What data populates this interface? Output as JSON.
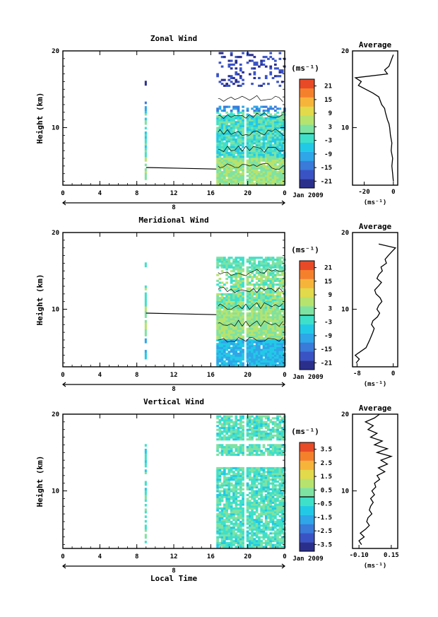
{
  "page": {
    "xlabel": "Local Time",
    "date_label": "Jan 2009",
    "day_label": "8"
  },
  "colormap": [
    "#2b2f8c",
    "#3a53c4",
    "#3a7ad9",
    "#2ea6e8",
    "#22c9e6",
    "#3fe0c9",
    "#7ee2a2",
    "#b6e36e",
    "#e2d94b",
    "#f7b43a",
    "#f5802c",
    "#e84a27"
  ],
  "chart_data": [
    {
      "type": "heatmap",
      "title": "Zonal Wind",
      "ylabel": "Height (km)",
      "yticks": [
        "20",
        "10"
      ],
      "xticks": [
        "0",
        "4",
        "8",
        "12",
        "16",
        "20",
        "0"
      ],
      "xlim": [
        0,
        24
      ],
      "ylim": [
        2.5,
        20
      ],
      "colorbar": {
        "unit": "(ms⁻¹)",
        "ticks": [
          "21",
          "15",
          "9",
          "3",
          "-3",
          "-9",
          "-15",
          "-21"
        ],
        "range": [
          -24,
          24
        ]
      },
      "profile": {
        "title": "Average",
        "xlabel": "(ms⁻¹)",
        "xticks": [
          "-20",
          "0"
        ],
        "xlim": [
          -28,
          3
        ],
        "heights": [
          3,
          4,
          5,
          6,
          7,
          8,
          9,
          10,
          10.5,
          11,
          12,
          12.5,
          13,
          14,
          14.5,
          15,
          15.5,
          16,
          16.5,
          17,
          17.5,
          18,
          18.5,
          19,
          19.5
        ],
        "values": [
          0,
          -0.5,
          -1,
          -0.5,
          -1.5,
          -1,
          -2,
          -2.5,
          -3,
          -4,
          -5.5,
          -6,
          -8,
          -10,
          -14,
          -19,
          -24,
          -22,
          -26,
          -4,
          -6,
          -3,
          -2,
          -1,
          0
        ]
      }
    },
    {
      "type": "heatmap",
      "title": "Meridional Wind",
      "ylabel": "Height (km)",
      "yticks": [
        "20",
        "10"
      ],
      "xticks": [
        "0",
        "4",
        "8",
        "12",
        "16",
        "20",
        "0"
      ],
      "xlim": [
        0,
        24
      ],
      "ylim": [
        2.5,
        20
      ],
      "colorbar": {
        "unit": "(ms⁻¹)",
        "ticks": [
          "21",
          "15",
          "9",
          "3",
          "-3",
          "-9",
          "-15",
          "-21"
        ],
        "range": [
          -24,
          24
        ]
      },
      "profile": {
        "title": "Average",
        "xlabel": "(ms⁻¹)",
        "xticks": [
          "-8",
          "0"
        ],
        "xlim": [
          -9,
          1
        ],
        "heights": [
          3,
          3.5,
          4,
          4.5,
          5,
          6,
          7,
          7.5,
          8,
          8.5,
          9,
          9.5,
          10,
          10.5,
          11,
          11.5,
          12,
          12.5,
          13,
          13.5,
          14,
          14.5,
          15,
          15.5,
          16,
          16.5,
          17,
          17.5,
          18,
          18.5
        ],
        "values": [
          -8.2,
          -7.5,
          -8.4,
          -7.2,
          -6,
          -5.2,
          -4.5,
          -4.2,
          -4.8,
          -4.5,
          -3.5,
          -3,
          -3.6,
          -3.2,
          -2.5,
          -2.9,
          -3.8,
          -4.1,
          -3.3,
          -2.6,
          -3.6,
          -3.2,
          -2.4,
          -2.7,
          -1.5,
          -1.8,
          -1.1,
          -0.3,
          0.5,
          -3.2
        ]
      }
    },
    {
      "type": "heatmap",
      "title": "Vertical Wind",
      "ylabel": "Height (km)",
      "yticks": [
        "20",
        "10"
      ],
      "xticks": [
        "0",
        "4",
        "8",
        "12",
        "16",
        "20",
        "0"
      ],
      "xlim": [
        0,
        24
      ],
      "ylim": [
        2.5,
        20
      ],
      "colorbar": {
        "unit": "(ms⁻¹)",
        "ticks": [
          "3.5",
          "2.5",
          "1.5",
          "0.5",
          "-0.5",
          "-1.5",
          "-2.5",
          "-3.5"
        ],
        "range": [
          -4,
          4
        ]
      },
      "profile": {
        "title": "Average",
        "xlabel": "(ms⁻¹)",
        "xticks": [
          "-0.10",
          "0.15"
        ],
        "xlim": [
          -0.15,
          0.2
        ],
        "heights": [
          3,
          3.5,
          4,
          4.5,
          5,
          5.5,
          6,
          6.5,
          7,
          7.5,
          8,
          8.5,
          9,
          9.5,
          10,
          10.5,
          11,
          11.5,
          12,
          12.5,
          13,
          13.5,
          14,
          14.5,
          15,
          15.5,
          16,
          16.5,
          17,
          17.5,
          18,
          18.5,
          19,
          19.5,
          20
        ],
        "values": [
          -0.08,
          -0.1,
          -0.06,
          -0.09,
          -0.05,
          -0.02,
          -0.04,
          -0.03,
          0,
          -0.02,
          -0.01,
          0.01,
          -0.01,
          0.02,
          0,
          0.03,
          0.02,
          0.06,
          0.04,
          0.1,
          0.05,
          0.12,
          0.07,
          0.15,
          0.04,
          0.12,
          0.02,
          0.08,
          -0.01,
          0.04,
          -0.03,
          0.01,
          -0.05,
          0.02,
          0.06
        ]
      }
    }
  ]
}
